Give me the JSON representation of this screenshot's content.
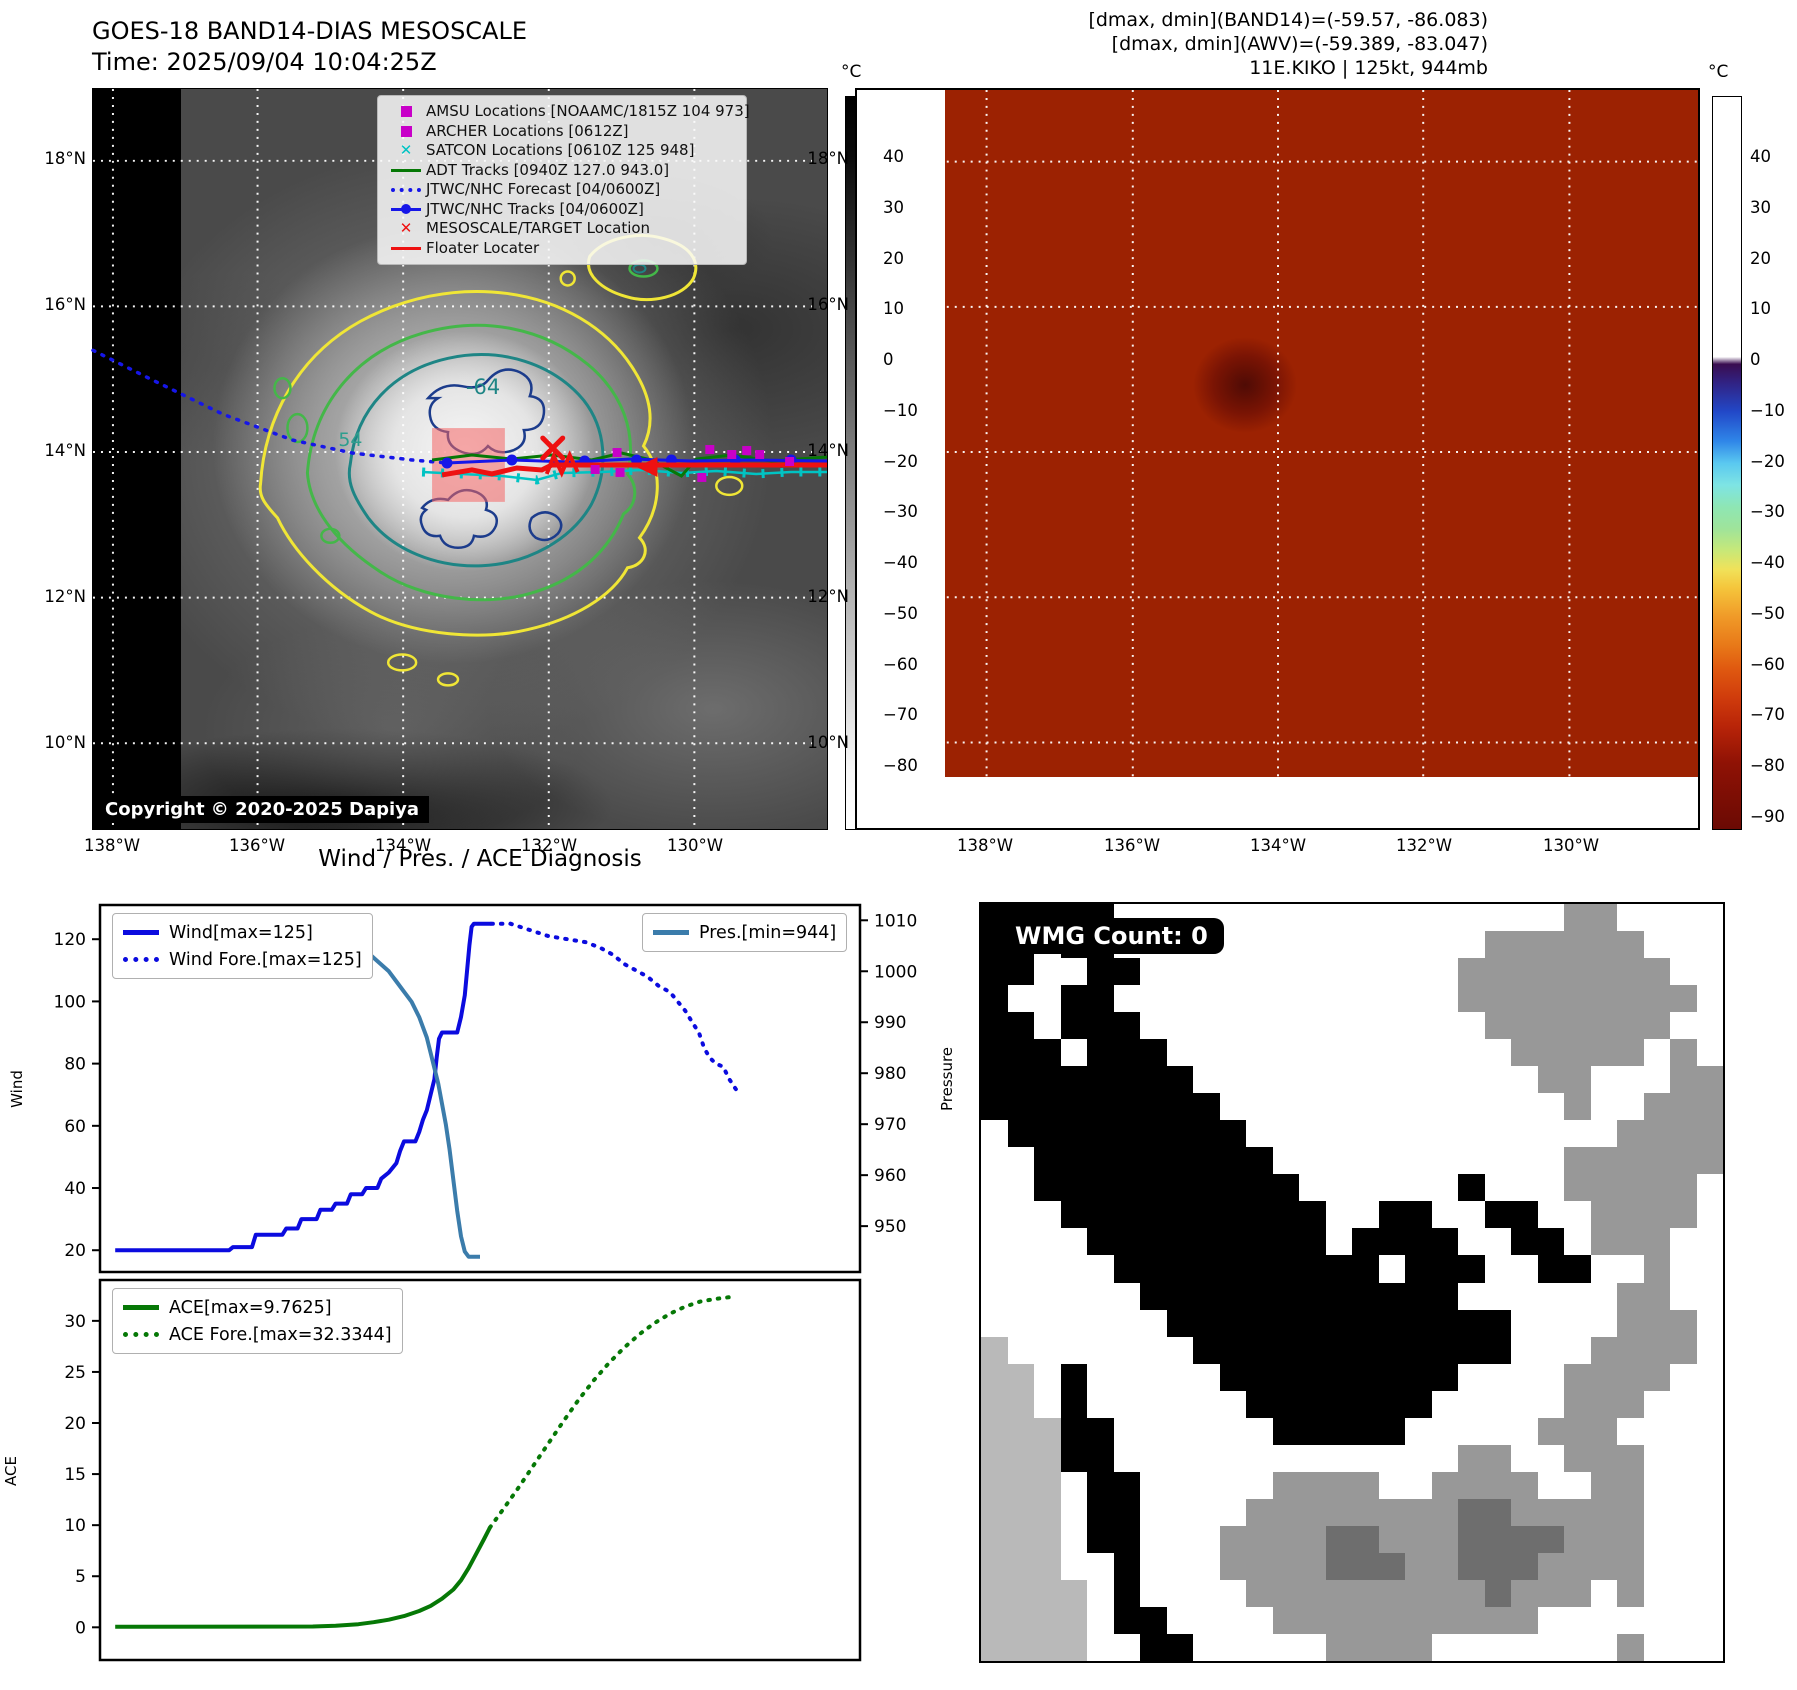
{
  "panel1": {
    "title_line1": "GOES-18 BAND14-DIAS MESOSCALE",
    "title_line2": "Time: 2025/09/04 10:04:25Z",
    "copyright": "Copyright © 2020-2025 Dapiya",
    "lat_labels": [
      "18°N",
      "16°N",
      "14°N",
      "12°N",
      "10°N"
    ],
    "lon_labels": [
      "138°W",
      "136°W",
      "134°W",
      "132°W",
      "130°W"
    ],
    "contour_labels": {
      "inner": "-64",
      "outer": "54"
    },
    "legend": [
      {
        "marker": "square",
        "color": "#c800c8",
        "label": "AMSU Locations [NOAAMC/1815Z 104 973]"
      },
      {
        "marker": "square",
        "color": "#c800c8",
        "label": "ARCHER Locations [0612Z]"
      },
      {
        "marker": "x",
        "color": "#00c3c3",
        "label": "SATCON Locations [0610Z 125 948]"
      },
      {
        "marker": "line",
        "color": "#067806",
        "label": "ADT Tracks [0940Z 127.0 943.0]"
      },
      {
        "marker": "dotted",
        "color": "#1616e8",
        "label": "JTWC/NHC Forecast [04/0600Z]"
      },
      {
        "marker": "line-dot",
        "color": "#1616e8",
        "label": "JTWC/NHC Tracks [04/0600Z]"
      },
      {
        "marker": "x",
        "color": "#ee1111",
        "label": "MESOSCALE/TARGET Location"
      },
      {
        "marker": "line",
        "color": "#ee1111",
        "label": "Floater Locater"
      }
    ],
    "colorbar": {
      "unit": "°C",
      "ticks": [
        "40",
        "30",
        "20",
        "10",
        "0",
        "−10",
        "−20",
        "−30",
        "−40",
        "−50",
        "−60",
        "−70",
        "−80"
      ]
    }
  },
  "panel2": {
    "header_line1": "[dmax, dmin](BAND14)=(-59.57, -86.083)",
    "header_line2": "[dmax, dmin](AWV)=(-59.389, -83.047)",
    "header_line3": "11E.KIKO | 125kt, 944mb",
    "lat_labels": [
      "18°N",
      "16°N",
      "14°N",
      "12°N",
      "10°N"
    ],
    "lon_labels": [
      "138°W",
      "136°W",
      "134°W",
      "132°W",
      "130°W"
    ],
    "colorbar": {
      "unit": "°C",
      "ticks": [
        "40",
        "30",
        "20",
        "10",
        "0",
        "−10",
        "−20",
        "−30",
        "−40",
        "−50",
        "−60",
        "−70",
        "−80",
        "−90"
      ]
    }
  },
  "charts": {
    "title": "Wind / Pres. / ACE Diagnosis",
    "wind_ylabel": "Wind",
    "pressure_ylabel": "Pressure",
    "ace_ylabel": "ACE"
  },
  "chart_data": [
    {
      "type": "line",
      "title": "Wind / Pres. / ACE Diagnosis",
      "xlabel": "",
      "ylabel": "Wind",
      "ylabel_right": "Pressure",
      "xlim": [
        0,
        100
      ],
      "ylim": [
        13,
        131
      ],
      "ylim_right": [
        941,
        1013
      ],
      "yticks": [
        20,
        40,
        60,
        80,
        100,
        120
      ],
      "yticks_right": [
        950,
        960,
        970,
        980,
        990,
        1000,
        1010
      ],
      "grid": false,
      "series": [
        {
          "name": "Wind[max=125]",
          "color": "#0b0bdf",
          "style": "solid",
          "axis": "left",
          "points": [
            [
              2,
              20
            ],
            [
              17,
              20
            ],
            [
              17.5,
              21
            ],
            [
              20,
              21
            ],
            [
              20.5,
              25
            ],
            [
              24,
              25
            ],
            [
              24.5,
              27
            ],
            [
              26,
              27
            ],
            [
              26.5,
              30
            ],
            [
              28.5,
              30
            ],
            [
              29,
              33
            ],
            [
              30.5,
              33
            ],
            [
              31,
              35
            ],
            [
              32.5,
              35
            ],
            [
              33,
              38
            ],
            [
              34.5,
              38
            ],
            [
              35,
              40
            ],
            [
              36.5,
              40
            ],
            [
              37,
              43
            ],
            [
              38,
              45
            ],
            [
              39,
              48
            ],
            [
              39.5,
              52
            ],
            [
              40,
              55
            ],
            [
              41.5,
              55
            ],
            [
              42,
              58
            ],
            [
              42.5,
              62
            ],
            [
              43,
              65
            ],
            [
              43.5,
              70
            ],
            [
              44,
              75
            ],
            [
              44.3,
              82
            ],
            [
              44.6,
              88
            ],
            [
              45,
              90
            ],
            [
              47,
              90
            ],
            [
              47.5,
              95
            ],
            [
              48,
              102
            ],
            [
              48.3,
              110
            ],
            [
              48.6,
              118
            ],
            [
              48.9,
              124
            ],
            [
              49.2,
              125
            ],
            [
              51.5,
              125
            ]
          ]
        },
        {
          "name": "Wind Fore.[max=125]",
          "color": "#0b0bdf",
          "style": "dotted",
          "axis": "left",
          "points": [
            [
              51.5,
              125
            ],
            [
              54,
              125
            ],
            [
              56.5,
              123
            ],
            [
              59,
              121
            ],
            [
              61.5,
              120
            ],
            [
              64,
              119
            ],
            [
              66,
              117
            ],
            [
              67.5,
              115
            ],
            [
              69,
              112
            ],
            [
              70.5,
              110
            ],
            [
              72,
              108
            ],
            [
              73.5,
              105
            ],
            [
              75,
              103
            ],
            [
              76,
              100
            ],
            [
              77,
              97
            ],
            [
              78,
              93
            ],
            [
              78.8,
              90
            ],
            [
              79.5,
              85
            ],
            [
              80.2,
              82
            ],
            [
              81,
              80
            ],
            [
              82,
              79
            ],
            [
              82.8,
              75
            ],
            [
              83.6,
              72
            ],
            [
              84.2,
              70
            ]
          ]
        },
        {
          "name": "Pres.[min=944]",
          "color": "#3b7cab",
          "style": "solid",
          "axis": "right",
          "points": [
            [
              2,
              1009
            ],
            [
              27,
              1009
            ],
            [
              29,
              1008
            ],
            [
              31,
              1007
            ],
            [
              33,
              1006
            ],
            [
              35,
              1004
            ],
            [
              36.5,
              1002
            ],
            [
              38,
              1000
            ],
            [
              39,
              998
            ],
            [
              40,
              996
            ],
            [
              41,
              994
            ],
            [
              42,
              991
            ],
            [
              42.5,
              989
            ],
            [
              43,
              987
            ],
            [
              43.5,
              984
            ],
            [
              44,
              981
            ],
            [
              44.5,
              978
            ],
            [
              45,
              974
            ],
            [
              45.5,
              970
            ],
            [
              46,
              965
            ],
            [
              46.5,
              959
            ],
            [
              47,
              953
            ],
            [
              47.5,
              948
            ],
            [
              48,
              945
            ],
            [
              48.5,
              944
            ],
            [
              50,
              944
            ]
          ]
        }
      ]
    },
    {
      "type": "line",
      "xlabel": "",
      "ylabel": "ACE",
      "xlim": [
        0,
        100
      ],
      "ylim": [
        -3.2,
        34
      ],
      "yticks": [
        0,
        5,
        10,
        15,
        20,
        25,
        30
      ],
      "grid": false,
      "series": [
        {
          "name": "ACE[max=9.7625]",
          "color": "#067806",
          "style": "solid",
          "axis": "left",
          "points": [
            [
              2,
              0.05
            ],
            [
              28,
              0.08
            ],
            [
              31,
              0.15
            ],
            [
              34,
              0.3
            ],
            [
              36,
              0.5
            ],
            [
              38,
              0.75
            ],
            [
              40,
              1.1
            ],
            [
              42,
              1.6
            ],
            [
              43.5,
              2.1
            ],
            [
              45,
              2.8
            ],
            [
              46.5,
              3.7
            ],
            [
              47.5,
              4.6
            ],
            [
              48.5,
              5.8
            ],
            [
              49.5,
              7.2
            ],
            [
              50.5,
              8.6
            ],
            [
              51.3,
              9.7625
            ]
          ]
        },
        {
          "name": "ACE Fore.[max=32.3344]",
          "color": "#067806",
          "style": "dotted",
          "axis": "left",
          "points": [
            [
              51.3,
              9.7625
            ],
            [
              53,
              11.5
            ],
            [
              55,
              13.6
            ],
            [
              57,
              15.8
            ],
            [
              59,
              18
            ],
            [
              61,
              20.2
            ],
            [
              63,
              22.3
            ],
            [
              65,
              24.2
            ],
            [
              67,
              25.9
            ],
            [
              69,
              27.4
            ],
            [
              71,
              28.7
            ],
            [
              73,
              29.8
            ],
            [
              75,
              30.7
            ],
            [
              77,
              31.4
            ],
            [
              79,
              31.9
            ],
            [
              81,
              32.15
            ],
            [
              83,
              32.3344
            ]
          ]
        }
      ]
    }
  ],
  "wmg": {
    "label": "WMG Count: 0",
    "palette": {
      "B": "#000000",
      "W": "#ffffff",
      "G": "#989898",
      "D": "#6e6e6e",
      "L": "#b9b9b9"
    },
    "grid": [
      "BBBBBWWWWWWWWWWWWWWWWWGGWWWW",
      "BBWBBWWWWWWWWWWWWWWGGGGGGWWW",
      "BBWWBBWWWWWWWWWWWWGGGGGGGGWW",
      "BWWBBWWWWWWWWWWWWWGGGGGGGGGW",
      "BBWBBBWWWWWWWWWWWWWGGGGGGGWW",
      "BBBWBBBWWWWWWWWWWWWWGGGGGWGW",
      "BBBBBBBBWWWWWWWWWWWWWGGWWWGG",
      "BBBBBBBBBWWWWWWWWWWWWWGWWGGG",
      "WBBBBBBBBBWWWWWWWWWWWWWWGGGG",
      "WWBBBBBBBBBWWWWWWWWWWWGGGGGG",
      "WWBBBBBBBBBBWWWWWWBWWWGGGGGW",
      "WWWBBBBBBBBBBWWBBWWBBWWGGGGW",
      "WWWWBBBBBBBBBWBBBBWWBBWGGGWW",
      "WWWWWBBBBBBBBBBWBBBWWBBWWGWW",
      "WWWWWWBBBBBBBBBBBBWWWWWWGGWW",
      "WWWWWWWBBBBBBBBBBBBBWWWWGGGW",
      "LWWWWWWWBBBBBBBBBBBBWWWGGGGW",
      "LLWBWWWWWBBBBBBBBBWWWWGGGGWW",
      "LLWBWWWWWWBBBBBBBWWWWWGGGWWW",
      "LLLBBWWWWWWBBBBBWWWWWGGGWWWW",
      "LLLBBWWWWWWWWWWWWWGGWWGGGWWW",
      "LLLWBBWWWWWGGGGWWGGGGWWGGWWW",
      "LLLWBBWWWWGGGGGGGGDDGGGGGWWW",
      "LLLWBBWWWGGGGDDGGGDDDDGGGWWW",
      "LLLWWBWWWGGGGDDDGGDDDGGGGWWW",
      "LLLLWBWWWWGGGGGGGGGDGGGWGWWW",
      "LLLLWBBWWWWGGGGGGGGGGWWWWWWW",
      "LLLLWWBBWWWWWGGGGWWWWWWWGWWW"
    ]
  }
}
